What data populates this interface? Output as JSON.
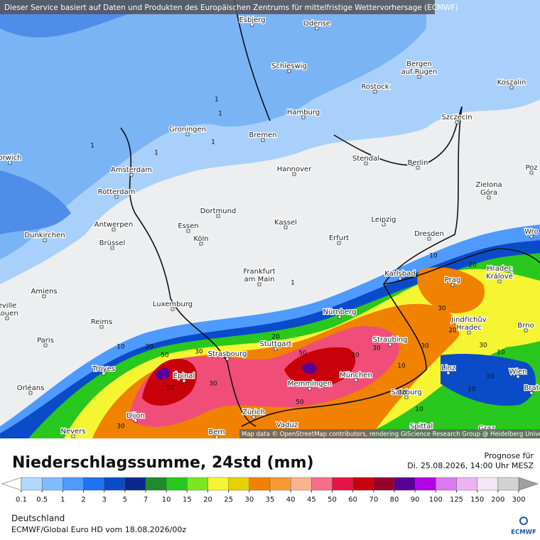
{
  "header": {
    "disclaimer": "Dieser Service basiert auf Daten und Produkten des Europäischen Zentrums für mittelfristige Wettervorhersage (ECMWF)"
  },
  "map": {
    "cities": [
      [
        "Esbjerg"
      ],
      [
        "Odense"
      ],
      [
        "Schleswig"
      ],
      [
        "Bergen",
        "auf Rügen"
      ],
      [
        "Rostock"
      ],
      [
        "Koszalin"
      ],
      [
        "Hamburg"
      ],
      [
        "Szczecin"
      ],
      [
        "Groningen"
      ],
      [
        "Bremen"
      ],
      [
        "orwich"
      ],
      [
        "Amsterdam"
      ],
      [
        "Hannover"
      ],
      [
        "Stendal"
      ],
      [
        "Berlin"
      ],
      [
        "Zielona",
        "Góra"
      ],
      [
        "Rotterdam"
      ],
      [
        "Poz"
      ],
      [
        "Dortmund"
      ],
      [
        "Antwerpen"
      ],
      [
        "Essen"
      ],
      [
        "Kassel"
      ],
      [
        "Leipzig"
      ],
      [
        "Dunkirchen"
      ],
      [
        "Köln"
      ],
      [
        "Erfurt"
      ],
      [
        "Dresden"
      ],
      [
        "Wro"
      ],
      [
        "Brüssel"
      ],
      [
        "Frankfurt",
        "am Main"
      ],
      [
        "Karlsbad"
      ],
      [
        "Hradec",
        "Králové"
      ],
      [
        "Prag"
      ],
      [
        "Amiens"
      ],
      [
        "Luxemburg"
      ],
      [
        "Nürnberg"
      ],
      [
        "Jindřichův",
        "Hradec"
      ],
      [
        "Brno"
      ],
      [
        "eville",
        "Rouen"
      ],
      [
        "Reims"
      ],
      [
        "Paris"
      ],
      [
        "Stuttgart"
      ],
      [
        "Straubing"
      ],
      [
        "Strasbourg"
      ],
      [
        "Troyes"
      ],
      [
        "Épinal"
      ],
      [
        "Linz"
      ],
      [
        "Wien"
      ],
      [
        "München"
      ],
      [
        "Memmingen"
      ],
      [
        "Orléans"
      ],
      [
        "Salzburg"
      ],
      [
        "Brat"
      ],
      [
        "Dijon"
      ],
      [
        "Zürich"
      ],
      [
        "Vaduz"
      ],
      [
        "Nevers"
      ],
      [
        "Bern"
      ],
      [
        "Spittal"
      ],
      [
        "Graz"
      ]
    ],
    "contour_labels": [
      1,
      1,
      1,
      1,
      1,
      1,
      10,
      20,
      30,
      20,
      30,
      50,
      50,
      30,
      20,
      50,
      30,
      20,
      10,
      30,
      10,
      10,
      20,
      30,
      10,
      50,
      30,
      30,
      10,
      10
    ],
    "attribution": "Map data © OpenStreetMap contributors, rendering GIScience Research Group @ Heidelberg University"
  },
  "legend": {
    "title": "Niederschlagssumme, 24std (mm)",
    "ticks": [
      0.1,
      0.5,
      1,
      2,
      3,
      5,
      7,
      10,
      15,
      20,
      25,
      30,
      35,
      40,
      45,
      50,
      60,
      70,
      80,
      90,
      100,
      125,
      150,
      200,
      300
    ],
    "colors": [
      "#b0d8ff",
      "#80bcff",
      "#4e9aff",
      "#1e72f5",
      "#0a4bc8",
      "#0a288c",
      "#1e8c28",
      "#28c81e",
      "#7ce61e",
      "#f5f532",
      "#e6d200",
      "#f08200",
      "#f59b32",
      "#f8b48c",
      "#f56e8c",
      "#e61446",
      "#c8000a",
      "#960028",
      "#5a0096",
      "#b400e6",
      "#dc78f0",
      "#ebb4f0",
      "#f5e6f5",
      "#d2d2d2"
    ],
    "under_color": "#ffffff",
    "over_color": "#a0a0a0"
  },
  "forecast": {
    "label": "Prognose für",
    "date": "Di. 25.08.2026, 14:00 Uhr MESZ"
  },
  "footer": {
    "region": "Deutschland",
    "model": "ECMWF/Global Euro HD vom  18.08.2026/00z",
    "logo": "ECMWF"
  }
}
